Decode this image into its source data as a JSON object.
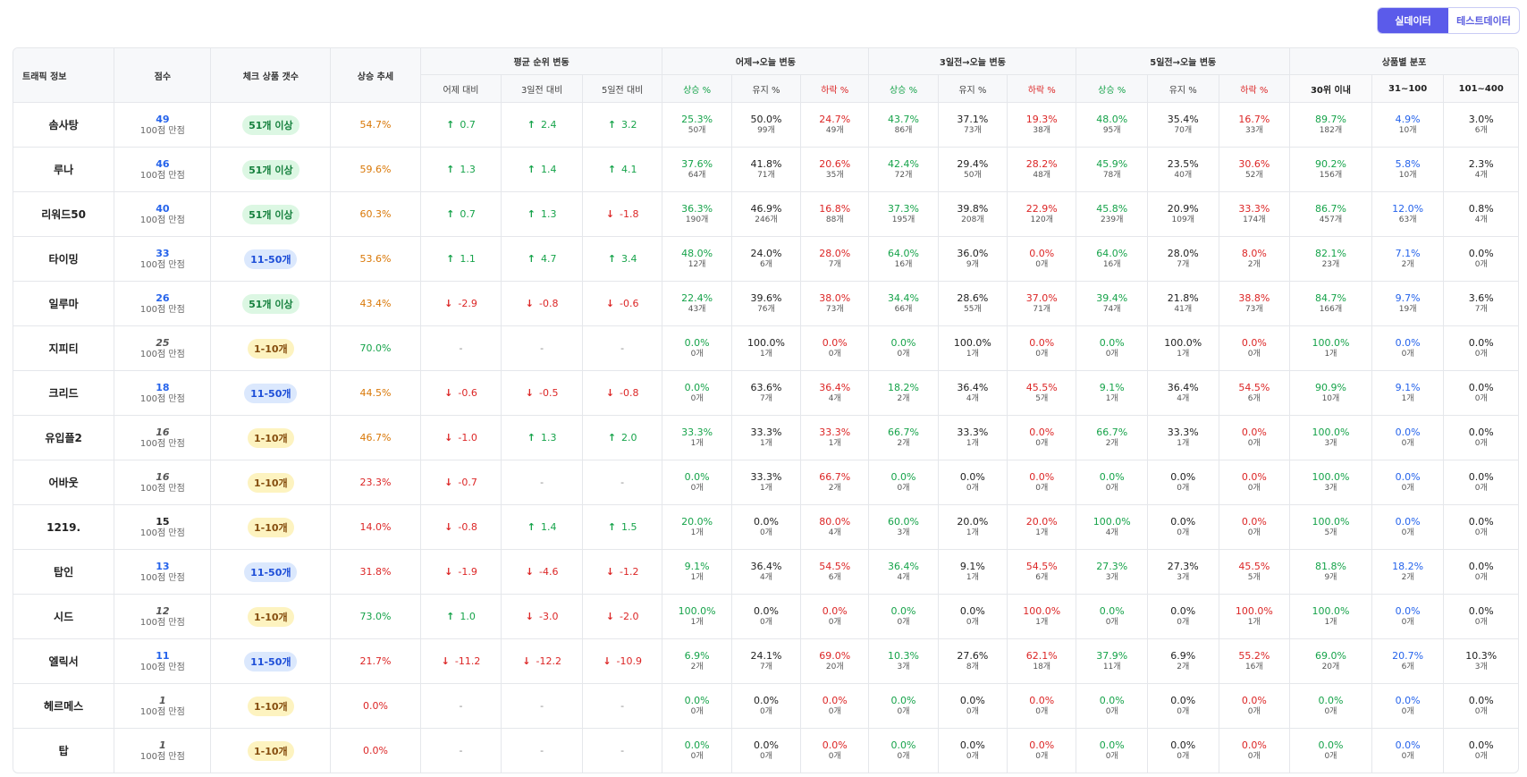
{
  "toggle": {
    "real": "실데이터",
    "test": "테스트데이터"
  },
  "header": {
    "traffic": "트래픽 정보",
    "score": "점수",
    "check_count": "체크 상품 갯수",
    "trend": "상승 추세",
    "avg_rank": "평균 순위 변동",
    "yday_today": "어제→오늘 변동",
    "d3_today": "3일전→오늘 변동",
    "d5_today": "5일전→오늘 변동",
    "distribution": "상품별 분포",
    "sub_yday": "어제 대비",
    "sub_3d": "3일전 대비",
    "sub_5d": "5일전 대비",
    "rise": "상승 %",
    "keep": "유지 %",
    "fall": "하락 %",
    "top30": "30위 이내",
    "r31": "31~100",
    "r101": "101~400"
  },
  "score_sub": "100점 만점",
  "colors": {
    "up": "#16a34a",
    "down": "#dc2626",
    "trend_orange": "#d97706",
    "score_blue": "#2563eb",
    "accent": "#5b5bea"
  },
  "rows": [
    {
      "name": "솜사탕",
      "score": "49",
      "score_style": "blue",
      "badge": "51개 이상",
      "badge_color": "green",
      "trend": "54.7%",
      "trend_color": "orange",
      "d1": {
        "dir": "up",
        "v": "0.7"
      },
      "d3": {
        "dir": "up",
        "v": "2.4"
      },
      "d5": {
        "dir": "up",
        "v": "3.2"
      },
      "y": [
        [
          "25.3%",
          "50개"
        ],
        [
          "50.0%",
          "99개"
        ],
        [
          "24.7%",
          "49개"
        ]
      ],
      "t3": [
        [
          "43.7%",
          "86개"
        ],
        [
          "37.1%",
          "73개"
        ],
        [
          "19.3%",
          "38개"
        ]
      ],
      "t5": [
        [
          "48.0%",
          "95개"
        ],
        [
          "35.4%",
          "70개"
        ],
        [
          "16.7%",
          "33개"
        ]
      ],
      "dist": [
        [
          "89.7%",
          "182개"
        ],
        [
          "4.9%",
          "10개"
        ],
        [
          "3.0%",
          "6개"
        ]
      ]
    },
    {
      "name": "루나",
      "score": "46",
      "score_style": "blue",
      "badge": "51개 이상",
      "badge_color": "green",
      "trend": "59.6%",
      "trend_color": "orange",
      "d1": {
        "dir": "up",
        "v": "1.3"
      },
      "d3": {
        "dir": "up",
        "v": "1.4"
      },
      "d5": {
        "dir": "up",
        "v": "4.1"
      },
      "y": [
        [
          "37.6%",
          "64개"
        ],
        [
          "41.8%",
          "71개"
        ],
        [
          "20.6%",
          "35개"
        ]
      ],
      "t3": [
        [
          "42.4%",
          "72개"
        ],
        [
          "29.4%",
          "50개"
        ],
        [
          "28.2%",
          "48개"
        ]
      ],
      "t5": [
        [
          "45.9%",
          "78개"
        ],
        [
          "23.5%",
          "40개"
        ],
        [
          "30.6%",
          "52개"
        ]
      ],
      "dist": [
        [
          "90.2%",
          "156개"
        ],
        [
          "5.8%",
          "10개"
        ],
        [
          "2.3%",
          "4개"
        ]
      ]
    },
    {
      "name": "리워드50",
      "score": "40",
      "score_style": "blue",
      "badge": "51개 이상",
      "badge_color": "green",
      "trend": "60.3%",
      "trend_color": "orange",
      "d1": {
        "dir": "up",
        "v": "0.7"
      },
      "d3": {
        "dir": "up",
        "v": "1.3"
      },
      "d5": {
        "dir": "down",
        "v": "-1.8"
      },
      "y": [
        [
          "36.3%",
          "190개"
        ],
        [
          "46.9%",
          "246개"
        ],
        [
          "16.8%",
          "88개"
        ]
      ],
      "t3": [
        [
          "37.3%",
          "195개"
        ],
        [
          "39.8%",
          "208개"
        ],
        [
          "22.9%",
          "120개"
        ]
      ],
      "t5": [
        [
          "45.8%",
          "239개"
        ],
        [
          "20.9%",
          "109개"
        ],
        [
          "33.3%",
          "174개"
        ]
      ],
      "dist": [
        [
          "86.7%",
          "457개"
        ],
        [
          "12.0%",
          "63개"
        ],
        [
          "0.8%",
          "4개"
        ]
      ]
    },
    {
      "name": "타이밍",
      "score": "33",
      "score_style": "blue",
      "badge": "11-50개",
      "badge_color": "blue",
      "trend": "53.6%",
      "trend_color": "orange",
      "d1": {
        "dir": "up",
        "v": "1.1"
      },
      "d3": {
        "dir": "up",
        "v": "4.7"
      },
      "d5": {
        "dir": "up",
        "v": "3.4"
      },
      "y": [
        [
          "48.0%",
          "12개"
        ],
        [
          "24.0%",
          "6개"
        ],
        [
          "28.0%",
          "7개"
        ]
      ],
      "t3": [
        [
          "64.0%",
          "16개"
        ],
        [
          "36.0%",
          "9개"
        ],
        [
          "0.0%",
          "0개"
        ]
      ],
      "t5": [
        [
          "64.0%",
          "16개"
        ],
        [
          "28.0%",
          "7개"
        ],
        [
          "8.0%",
          "2개"
        ]
      ],
      "dist": [
        [
          "82.1%",
          "23개"
        ],
        [
          "7.1%",
          "2개"
        ],
        [
          "0.0%",
          "0개"
        ]
      ]
    },
    {
      "name": "일루마",
      "score": "26",
      "score_style": "blue",
      "badge": "51개 이상",
      "badge_color": "green",
      "trend": "43.4%",
      "trend_color": "orange",
      "d1": {
        "dir": "down",
        "v": "-2.9"
      },
      "d3": {
        "dir": "down",
        "v": "-0.8"
      },
      "d5": {
        "dir": "down",
        "v": "-0.6"
      },
      "y": [
        [
          "22.4%",
          "43개"
        ],
        [
          "39.6%",
          "76개"
        ],
        [
          "38.0%",
          "73개"
        ]
      ],
      "t3": [
        [
          "34.4%",
          "66개"
        ],
        [
          "28.6%",
          "55개"
        ],
        [
          "37.0%",
          "71개"
        ]
      ],
      "t5": [
        [
          "39.4%",
          "74개"
        ],
        [
          "21.8%",
          "41개"
        ],
        [
          "38.8%",
          "73개"
        ]
      ],
      "dist": [
        [
          "84.7%",
          "166개"
        ],
        [
          "9.7%",
          "19개"
        ],
        [
          "3.6%",
          "7개"
        ]
      ]
    },
    {
      "name": "지피티",
      "score": "25",
      "score_style": "italic",
      "badge": "1-10개",
      "badge_color": "yellow",
      "trend": "70.0%",
      "trend_color": "green",
      "d1": {
        "dir": "none",
        "v": "-"
      },
      "d3": {
        "dir": "none",
        "v": "-"
      },
      "d5": {
        "dir": "none",
        "v": "-"
      },
      "y": [
        [
          "0.0%",
          "0개"
        ],
        [
          "100.0%",
          "1개"
        ],
        [
          "0.0%",
          "0개"
        ]
      ],
      "t3": [
        [
          "0.0%",
          "0개"
        ],
        [
          "100.0%",
          "1개"
        ],
        [
          "0.0%",
          "0개"
        ]
      ],
      "t5": [
        [
          "0.0%",
          "0개"
        ],
        [
          "100.0%",
          "1개"
        ],
        [
          "0.0%",
          "0개"
        ]
      ],
      "dist": [
        [
          "100.0%",
          "1개"
        ],
        [
          "0.0%",
          "0개"
        ],
        [
          "0.0%",
          "0개"
        ]
      ]
    },
    {
      "name": "크리드",
      "score": "18",
      "score_style": "blue",
      "badge": "11-50개",
      "badge_color": "blue",
      "trend": "44.5%",
      "trend_color": "orange",
      "d1": {
        "dir": "down",
        "v": "-0.6"
      },
      "d3": {
        "dir": "down",
        "v": "-0.5"
      },
      "d5": {
        "dir": "down",
        "v": "-0.8"
      },
      "y": [
        [
          "0.0%",
          "0개"
        ],
        [
          "63.6%",
          "7개"
        ],
        [
          "36.4%",
          "4개"
        ]
      ],
      "t3": [
        [
          "18.2%",
          "2개"
        ],
        [
          "36.4%",
          "4개"
        ],
        [
          "45.5%",
          "5개"
        ]
      ],
      "t5": [
        [
          "9.1%",
          "1개"
        ],
        [
          "36.4%",
          "4개"
        ],
        [
          "54.5%",
          "6개"
        ]
      ],
      "dist": [
        [
          "90.9%",
          "10개"
        ],
        [
          "9.1%",
          "1개"
        ],
        [
          "0.0%",
          "0개"
        ]
      ]
    },
    {
      "name": "유입플2",
      "score": "16",
      "score_style": "italic",
      "badge": "1-10개",
      "badge_color": "yellow",
      "trend": "46.7%",
      "trend_color": "orange",
      "d1": {
        "dir": "down",
        "v": "-1.0"
      },
      "d3": {
        "dir": "up",
        "v": "1.3"
      },
      "d5": {
        "dir": "up",
        "v": "2.0"
      },
      "y": [
        [
          "33.3%",
          "1개"
        ],
        [
          "33.3%",
          "1개"
        ],
        [
          "33.3%",
          "1개"
        ]
      ],
      "t3": [
        [
          "66.7%",
          "2개"
        ],
        [
          "33.3%",
          "1개"
        ],
        [
          "0.0%",
          "0개"
        ]
      ],
      "t5": [
        [
          "66.7%",
          "2개"
        ],
        [
          "33.3%",
          "1개"
        ],
        [
          "0.0%",
          "0개"
        ]
      ],
      "dist": [
        [
          "100.0%",
          "3개"
        ],
        [
          "0.0%",
          "0개"
        ],
        [
          "0.0%",
          "0개"
        ]
      ]
    },
    {
      "name": "어바웃",
      "score": "16",
      "score_style": "italic",
      "badge": "1-10개",
      "badge_color": "yellow",
      "trend": "23.3%",
      "trend_color": "red",
      "d1": {
        "dir": "down",
        "v": "-0.7"
      },
      "d3": {
        "dir": "none",
        "v": "-"
      },
      "d5": {
        "dir": "none",
        "v": "-"
      },
      "y": [
        [
          "0.0%",
          "0개"
        ],
        [
          "33.3%",
          "1개"
        ],
        [
          "66.7%",
          "2개"
        ]
      ],
      "t3": [
        [
          "0.0%",
          "0개"
        ],
        [
          "0.0%",
          "0개"
        ],
        [
          "0.0%",
          "0개"
        ]
      ],
      "t5": [
        [
          "0.0%",
          "0개"
        ],
        [
          "0.0%",
          "0개"
        ],
        [
          "0.0%",
          "0개"
        ]
      ],
      "dist": [
        [
          "100.0%",
          "3개"
        ],
        [
          "0.0%",
          "0개"
        ],
        [
          "0.0%",
          "0개"
        ]
      ]
    },
    {
      "name": "1219.",
      "score": "15",
      "score_style": "dark",
      "badge": "1-10개",
      "badge_color": "yellow",
      "trend": "14.0%",
      "trend_color": "red",
      "d1": {
        "dir": "down",
        "v": "-0.8"
      },
      "d3": {
        "dir": "up",
        "v": "1.4"
      },
      "d5": {
        "dir": "up",
        "v": "1.5"
      },
      "y": [
        [
          "20.0%",
          "1개"
        ],
        [
          "0.0%",
          "0개"
        ],
        [
          "80.0%",
          "4개"
        ]
      ],
      "t3": [
        [
          "60.0%",
          "3개"
        ],
        [
          "20.0%",
          "1개"
        ],
        [
          "20.0%",
          "1개"
        ]
      ],
      "t5": [
        [
          "100.0%",
          "4개"
        ],
        [
          "0.0%",
          "0개"
        ],
        [
          "0.0%",
          "0개"
        ]
      ],
      "dist": [
        [
          "100.0%",
          "5개"
        ],
        [
          "0.0%",
          "0개"
        ],
        [
          "0.0%",
          "0개"
        ]
      ]
    },
    {
      "name": "탑인",
      "score": "13",
      "score_style": "blue",
      "badge": "11-50개",
      "badge_color": "blue",
      "trend": "31.8%",
      "trend_color": "red",
      "d1": {
        "dir": "down",
        "v": "-1.9"
      },
      "d3": {
        "dir": "down",
        "v": "-4.6"
      },
      "d5": {
        "dir": "down",
        "v": "-1.2"
      },
      "y": [
        [
          "9.1%",
          "1개"
        ],
        [
          "36.4%",
          "4개"
        ],
        [
          "54.5%",
          "6개"
        ]
      ],
      "t3": [
        [
          "36.4%",
          "4개"
        ],
        [
          "9.1%",
          "1개"
        ],
        [
          "54.5%",
          "6개"
        ]
      ],
      "t5": [
        [
          "27.3%",
          "3개"
        ],
        [
          "27.3%",
          "3개"
        ],
        [
          "45.5%",
          "5개"
        ]
      ],
      "dist": [
        [
          "81.8%",
          "9개"
        ],
        [
          "18.2%",
          "2개"
        ],
        [
          "0.0%",
          "0개"
        ]
      ]
    },
    {
      "name": "시드",
      "score": "12",
      "score_style": "italic",
      "badge": "1-10개",
      "badge_color": "yellow",
      "trend": "73.0%",
      "trend_color": "green",
      "d1": {
        "dir": "up",
        "v": "1.0"
      },
      "d3": {
        "dir": "down",
        "v": "-3.0"
      },
      "d5": {
        "dir": "down",
        "v": "-2.0"
      },
      "y": [
        [
          "100.0%",
          "1개"
        ],
        [
          "0.0%",
          "0개"
        ],
        [
          "0.0%",
          "0개"
        ]
      ],
      "t3": [
        [
          "0.0%",
          "0개"
        ],
        [
          "0.0%",
          "0개"
        ],
        [
          "100.0%",
          "1개"
        ]
      ],
      "t5": [
        [
          "0.0%",
          "0개"
        ],
        [
          "0.0%",
          "0개"
        ],
        [
          "100.0%",
          "1개"
        ]
      ],
      "dist": [
        [
          "100.0%",
          "1개"
        ],
        [
          "0.0%",
          "0개"
        ],
        [
          "0.0%",
          "0개"
        ]
      ]
    },
    {
      "name": "엘릭서",
      "score": "11",
      "score_style": "blue",
      "badge": "11-50개",
      "badge_color": "blue",
      "trend": "21.7%",
      "trend_color": "red",
      "d1": {
        "dir": "down",
        "v": "-11.2"
      },
      "d3": {
        "dir": "down",
        "v": "-12.2"
      },
      "d5": {
        "dir": "down",
        "v": "-10.9"
      },
      "y": [
        [
          "6.9%",
          "2개"
        ],
        [
          "24.1%",
          "7개"
        ],
        [
          "69.0%",
          "20개"
        ]
      ],
      "t3": [
        [
          "10.3%",
          "3개"
        ],
        [
          "27.6%",
          "8개"
        ],
        [
          "62.1%",
          "18개"
        ]
      ],
      "t5": [
        [
          "37.9%",
          "11개"
        ],
        [
          "6.9%",
          "2개"
        ],
        [
          "55.2%",
          "16개"
        ]
      ],
      "dist": [
        [
          "69.0%",
          "20개"
        ],
        [
          "20.7%",
          "6개"
        ],
        [
          "10.3%",
          "3개"
        ]
      ]
    },
    {
      "name": "헤르메스",
      "score": "1",
      "score_style": "italic",
      "badge": "1-10개",
      "badge_color": "yellow",
      "trend": "0.0%",
      "trend_color": "red",
      "d1": {
        "dir": "none",
        "v": "-"
      },
      "d3": {
        "dir": "none",
        "v": "-"
      },
      "d5": {
        "dir": "none",
        "v": "-"
      },
      "y": [
        [
          "0.0%",
          "0개"
        ],
        [
          "0.0%",
          "0개"
        ],
        [
          "0.0%",
          "0개"
        ]
      ],
      "t3": [
        [
          "0.0%",
          "0개"
        ],
        [
          "0.0%",
          "0개"
        ],
        [
          "0.0%",
          "0개"
        ]
      ],
      "t5": [
        [
          "0.0%",
          "0개"
        ],
        [
          "0.0%",
          "0개"
        ],
        [
          "0.0%",
          "0개"
        ]
      ],
      "dist": [
        [
          "0.0%",
          "0개"
        ],
        [
          "0.0%",
          "0개"
        ],
        [
          "0.0%",
          "0개"
        ]
      ]
    },
    {
      "name": "탑",
      "score": "1",
      "score_style": "italic",
      "badge": "1-10개",
      "badge_color": "yellow",
      "trend": "0.0%",
      "trend_color": "red",
      "d1": {
        "dir": "none",
        "v": "-"
      },
      "d3": {
        "dir": "none",
        "v": "-"
      },
      "d5": {
        "dir": "none",
        "v": "-"
      },
      "y": [
        [
          "0.0%",
          "0개"
        ],
        [
          "0.0%",
          "0개"
        ],
        [
          "0.0%",
          "0개"
        ]
      ],
      "t3": [
        [
          "0.0%",
          "0개"
        ],
        [
          "0.0%",
          "0개"
        ],
        [
          "0.0%",
          "0개"
        ]
      ],
      "t5": [
        [
          "0.0%",
          "0개"
        ],
        [
          "0.0%",
          "0개"
        ],
        [
          "0.0%",
          "0개"
        ]
      ],
      "dist": [
        [
          "0.0%",
          "0개"
        ],
        [
          "0.0%",
          "0개"
        ],
        [
          "0.0%",
          "0개"
        ]
      ]
    }
  ]
}
